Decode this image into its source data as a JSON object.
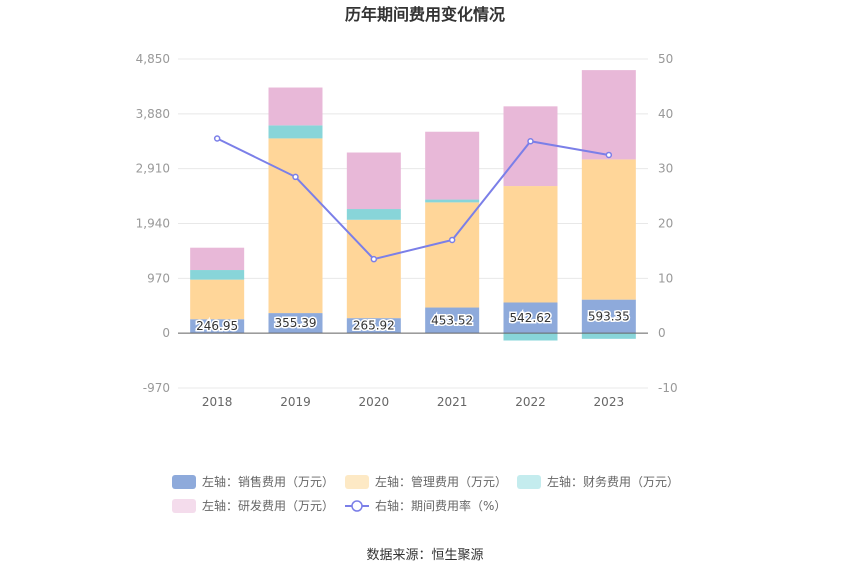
{
  "chart_data": {
    "type": "bar",
    "title": "历年期间费用变化情况",
    "categories": [
      "2018",
      "2019",
      "2020",
      "2021",
      "2022",
      "2023"
    ],
    "left_axis": {
      "ylim": [
        -970,
        4850
      ],
      "ticks": [
        "-970",
        "0",
        "970",
        "1,940",
        "2,910",
        "3,880",
        "4,850"
      ],
      "tick_values": [
        -970,
        0,
        970,
        1940,
        2910,
        3880,
        4850
      ]
    },
    "right_axis": {
      "ylim": [
        -10,
        50
      ],
      "ticks": [
        "-10",
        "0",
        "10",
        "20",
        "30",
        "40",
        "50"
      ],
      "tick_values": [
        -10,
        0,
        10,
        20,
        30,
        40,
        50
      ]
    },
    "grid": true,
    "legend_position": "bottom",
    "series": [
      {
        "name": "左轴：销售费用（万元）",
        "type": "bar",
        "axis": "left",
        "color": "#8eaadb",
        "values": [
          246.95,
          355.39,
          265.92,
          453.52,
          542.62,
          593.35
        ],
        "labels": [
          "246.95",
          "355.39",
          "265.92",
          "453.52",
          "542.62",
          "593.35"
        ]
      },
      {
        "name": "左轴：管理费用（万元）",
        "type": "bar",
        "axis": "left",
        "color": "#ffd699",
        "legend_color": "#fde9c5",
        "values": [
          700,
          3090,
          1740,
          1860,
          2060,
          2480
        ]
      },
      {
        "name": "左轴：财务费用（万元）",
        "type": "bar",
        "axis": "left",
        "color": "#88d5d9",
        "legend_color": "#c4ecee",
        "values": [
          170,
          230,
          190,
          50,
          -130,
          -100
        ]
      },
      {
        "name": "左轴：研发费用（万元）",
        "type": "bar",
        "axis": "left",
        "color": "#e8b8d8",
        "legend_color": "#f4dcec",
        "values": [
          395,
          670,
          1000,
          1200,
          1410,
          1580
        ]
      },
      {
        "name": "右轴：期间费用率（%）",
        "type": "line",
        "axis": "right",
        "color": "#7b7fe8",
        "values": [
          35.5,
          28.5,
          13.5,
          17,
          35,
          32.5
        ]
      }
    ],
    "source": "数据来源：恒生聚源"
  }
}
